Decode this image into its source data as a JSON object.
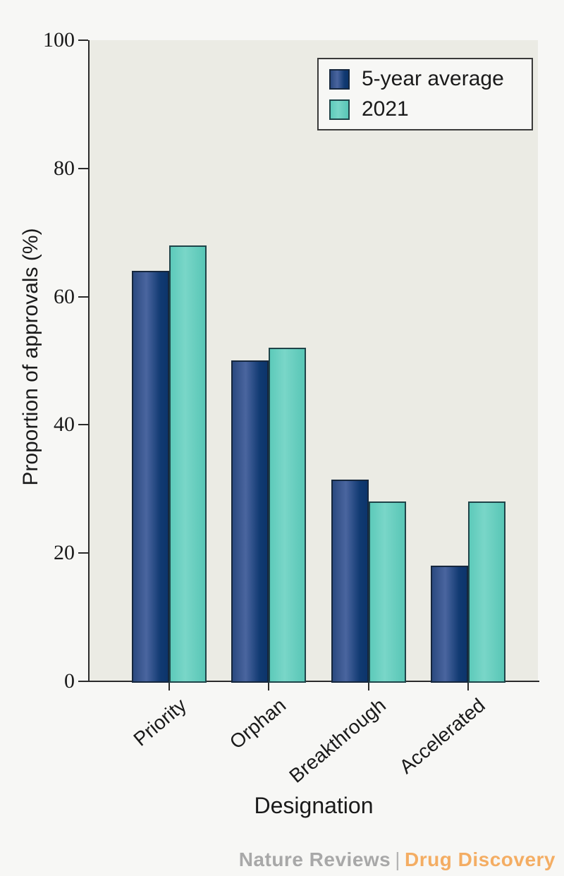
{
  "chart_data": {
    "type": "bar",
    "title": "",
    "categories": [
      "Priority",
      "Orphan",
      "Breakthrough",
      "Accelerated"
    ],
    "series": [
      {
        "name": "5-year average",
        "values": [
          64,
          50,
          31.5,
          18
        ],
        "color": "#0c356b",
        "border_color": "#16273d",
        "gradient": [
          [
            "#2b4a80",
            0
          ],
          [
            "#4a659f",
            38
          ],
          [
            "#113a72",
            78
          ],
          [
            "#0c356b",
            100
          ]
        ]
      },
      {
        "name": "2021",
        "values": [
          68,
          52,
          28,
          28
        ],
        "color": "#66cfc0",
        "border_color": "#1f4449",
        "gradient": [
          [
            "#5dcaba",
            0
          ],
          [
            "#79d6c8",
            42
          ],
          [
            "#58c6b6",
            100
          ]
        ]
      }
    ],
    "xlabel": "Designation",
    "ylabel": "Proportion of approvals (%)",
    "ylim": [
      0,
      100
    ],
    "yticks": [
      0,
      20,
      40,
      60,
      80,
      100
    ],
    "legend_position": "top-right",
    "grid": false
  },
  "footer": {
    "journal": "Nature Reviews",
    "separator": "|",
    "title": "Drug Discovery",
    "journal_color": "#a8a8a8",
    "title_color": "#f4ad63"
  },
  "colors": {
    "page_bg": "#f7f7f5",
    "plot_bg": "#ebebe4",
    "axis": "#2b2b2b",
    "text": "#1a1a1a"
  }
}
